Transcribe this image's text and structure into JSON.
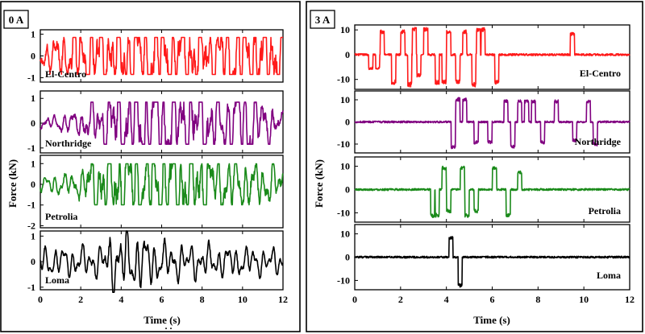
{
  "chart_data": [
    {
      "type": "line",
      "title": "0 A",
      "xlabel": "Time (s)",
      "ylabel": "Force (kN)",
      "xlim": [
        0,
        12
      ],
      "xticks": [
        "0",
        "2",
        "4",
        "6",
        "8",
        "10",
        "12"
      ],
      "series": [
        {
          "name": "El-Centro",
          "color": "#ff1a1a",
          "ylim": [
            -1.2,
            1.2
          ],
          "yticks": [
            "1",
            "0",
            "-1"
          ],
          "ytick_values": [
            1,
            0,
            -1
          ],
          "amplitude": 1.0,
          "sat": 0.85,
          "noise": 0.35,
          "envelope": [
            [
              0,
              0.3
            ],
            [
              1,
              0.45
            ],
            [
              2,
              0.9
            ],
            [
              3,
              1
            ],
            [
              4,
              1
            ],
            [
              5,
              1
            ],
            [
              6,
              0.9
            ],
            [
              8,
              0.95
            ],
            [
              10,
              1
            ],
            [
              12,
              0.95
            ]
          ]
        },
        {
          "name": "Northridge",
          "color": "#800080",
          "ylim": [
            -1.2,
            1.3
          ],
          "yticks": [
            "1",
            "0",
            "-1"
          ],
          "ytick_values": [
            1,
            0,
            -1
          ],
          "amplitude": 1.0,
          "sat": 0.85,
          "noise": 0.3,
          "envelope": [
            [
              0,
              0.1
            ],
            [
              2,
              0.25
            ],
            [
              3,
              0.6
            ],
            [
              4,
              1
            ],
            [
              8,
              1
            ],
            [
              9,
              0.6
            ],
            [
              10,
              1
            ],
            [
              11,
              0.5
            ],
            [
              12,
              0.2
            ]
          ]
        },
        {
          "name": "Petrolia",
          "color": "#1a8a1a",
          "ylim": [
            -2.1,
            1.4
          ],
          "yticks": [
            "1",
            "0",
            "-1",
            "-2"
          ],
          "ytick_values": [
            1,
            0,
            -1,
            -2
          ],
          "amplitude": 1.1,
          "sat": 0.9,
          "noise": 0.3,
          "envelope": [
            [
              0,
              0.15
            ],
            [
              2,
              0.3
            ],
            [
              3,
              1
            ],
            [
              8,
              1
            ],
            [
              9,
              0.6
            ],
            [
              12,
              0.4
            ]
          ]
        },
        {
          "name": "Loma",
          "color": "#000000",
          "ylim": [
            -1.1,
            1.2
          ],
          "yticks": [
            "1",
            "0",
            "-1"
          ],
          "ytick_values": [
            1,
            0,
            -1
          ],
          "amplitude": 0.6,
          "sat": 2.0,
          "noise": 0.15,
          "envelope": [
            [
              0,
              0.45
            ],
            [
              3,
              0.5
            ],
            [
              3.6,
              1
            ],
            [
              4.6,
              1
            ],
            [
              6,
              0.6
            ],
            [
              12,
              0.4
            ]
          ]
        }
      ]
    },
    {
      "type": "line",
      "title": "3 A",
      "xlabel": "Time (s)",
      "ylabel": "Force (kN)",
      "xlim": [
        0,
        12
      ],
      "xticks": [
        "0",
        "2",
        "4",
        "6",
        "8",
        "10",
        "12"
      ],
      "series": [
        {
          "name": "El-Centro",
          "color": "#ff1a1a",
          "ylim": [
            -14,
            12
          ],
          "yticks": [
            "10",
            "0",
            "-10"
          ],
          "ytick_values": [
            10,
            0,
            -10
          ],
          "spikes": [
            [
              0.7,
              -6
            ],
            [
              1.0,
              -6
            ],
            [
              1.2,
              10
            ],
            [
              1.7,
              -12
            ],
            [
              2.1,
              10
            ],
            [
              2.4,
              -13
            ],
            [
              2.6,
              11
            ],
            [
              2.8,
              -9
            ],
            [
              3.1,
              11
            ],
            [
              3.6,
              -12
            ],
            [
              3.9,
              -12
            ],
            [
              4.1,
              10
            ],
            [
              4.5,
              -12
            ],
            [
              4.8,
              10
            ],
            [
              5.2,
              -13
            ],
            [
              5.4,
              11
            ],
            [
              5.6,
              11
            ],
            [
              6.2,
              -12
            ],
            [
              9.5,
              9
            ]
          ]
        },
        {
          "name": "Northridge",
          "color": "#800080",
          "ylim": [
            -14,
            14
          ],
          "yticks": [
            "10",
            "0",
            "-10"
          ],
          "ytick_values": [
            10,
            0,
            -10
          ],
          "spikes": [
            [
              4.3,
              -12
            ],
            [
              4.5,
              11
            ],
            [
              4.8,
              11
            ],
            [
              5.3,
              -10
            ],
            [
              5.9,
              -10
            ],
            [
              6.6,
              10
            ],
            [
              6.9,
              -12
            ],
            [
              7.2,
              10
            ],
            [
              7.5,
              10
            ],
            [
              7.8,
              10
            ],
            [
              8.2,
              -10
            ],
            [
              8.8,
              10
            ],
            [
              9.6,
              -9
            ],
            [
              10.2,
              10
            ],
            [
              10.5,
              -11
            ]
          ]
        },
        {
          "name": "Petrolia",
          "color": "#1a8a1a",
          "ylim": [
            -14,
            14
          ],
          "yticks": [
            "10",
            "0",
            "-10"
          ],
          "ytick_values": [
            10,
            0,
            -10
          ],
          "spikes": [
            [
              3.4,
              -12
            ],
            [
              3.6,
              -12
            ],
            [
              3.9,
              10
            ],
            [
              4.1,
              -10
            ],
            [
              4.7,
              10
            ],
            [
              4.9,
              -12
            ],
            [
              5.3,
              -10
            ],
            [
              6.1,
              10
            ],
            [
              6.7,
              -12
            ],
            [
              7.2,
              8
            ]
          ]
        },
        {
          "name": "Loma",
          "color": "#000000",
          "ylim": [
            -14,
            14
          ],
          "yticks": [
            "10",
            "0",
            "-10"
          ],
          "ytick_values": [
            10,
            0,
            -10
          ],
          "spikes": [
            [
              4.2,
              9
            ],
            [
              4.6,
              -13
            ]
          ]
        }
      ]
    }
  ]
}
